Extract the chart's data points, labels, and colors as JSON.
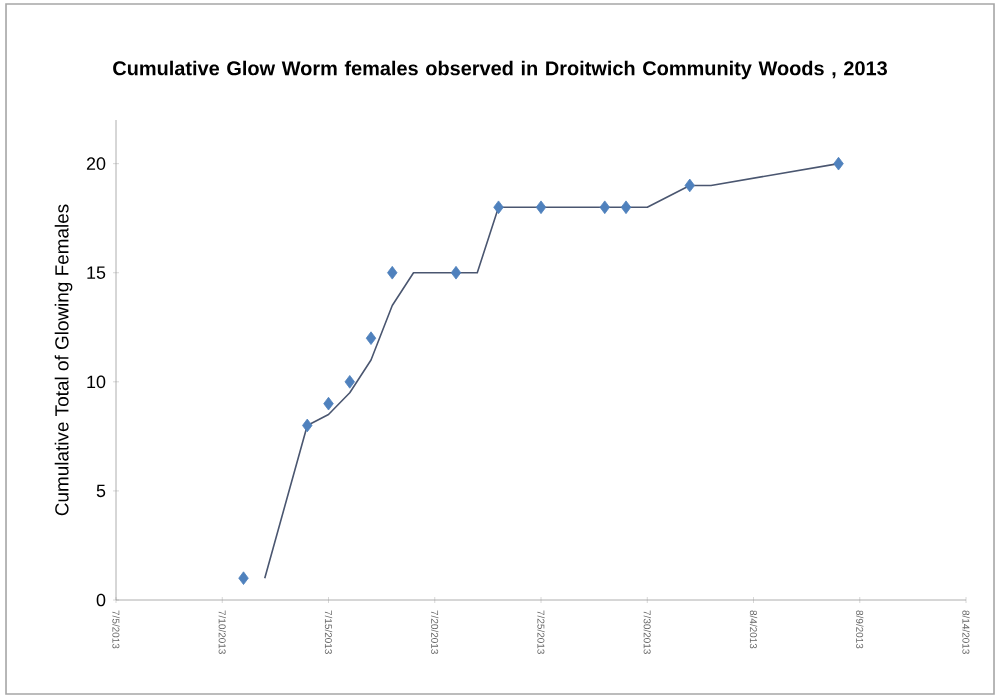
{
  "chart_data": {
    "type": "scatter",
    "title": "Cumulative Glow Worm females observed in Droitwich Community Woods , 2013",
    "ylabel": "Cumulative Total of Glowing Females",
    "x": [
      "2013-07-11",
      "2013-07-14",
      "2013-07-15",
      "2013-07-16",
      "2013-07-17",
      "2013-07-18",
      "2013-07-21",
      "2013-07-23",
      "2013-07-25",
      "2013-07-28",
      "2013-07-29",
      "2013-08-01",
      "2013-08-08"
    ],
    "series": [
      {
        "color": "#4f81bd",
        "marker": "diamond",
        "values": [
          1,
          8,
          9,
          10,
          12,
          15,
          15,
          18,
          18,
          18,
          18,
          19,
          20
        ]
      },
      {
        "type": "line",
        "color": "#4a5670",
        "marker": "none",
        "line_style": "solid",
        "x": [
          "2013-07-12",
          "2013-07-14",
          "2013-07-15",
          "2013-07-16",
          "2013-07-17",
          "2013-07-18",
          "2013-07-19",
          "2013-07-22",
          "2013-07-23",
          "2013-07-30",
          "2013-08-01",
          "2013-08-02",
          "2013-08-08"
        ],
        "values": [
          1,
          8,
          8.5,
          9.5,
          11,
          13.5,
          15,
          15,
          18,
          18,
          19,
          19,
          20
        ]
      }
    ],
    "xlim": [
      "2013-07-05",
      "2013-08-14"
    ],
    "xticks": [
      {
        "value": "2013-07-05",
        "label": "7/5/2013"
      },
      {
        "value": "2013-07-10",
        "label": "7/10/2013"
      },
      {
        "value": "2013-07-15",
        "label": "7/15/2013"
      },
      {
        "value": "2013-07-20",
        "label": "7/20/2013"
      },
      {
        "value": "2013-07-25",
        "label": "7/25/2013"
      },
      {
        "value": "2013-07-30",
        "label": "7/30/2013"
      },
      {
        "value": "2013-08-04",
        "label": "8/4/2013"
      },
      {
        "value": "2013-08-09",
        "label": "8/9/2013"
      },
      {
        "value": "2013-08-14",
        "label": "8/14/2013"
      }
    ],
    "ylim": [
      0,
      22
    ],
    "yticks": [
      0,
      5,
      10,
      15,
      20
    ],
    "grid": false
  }
}
